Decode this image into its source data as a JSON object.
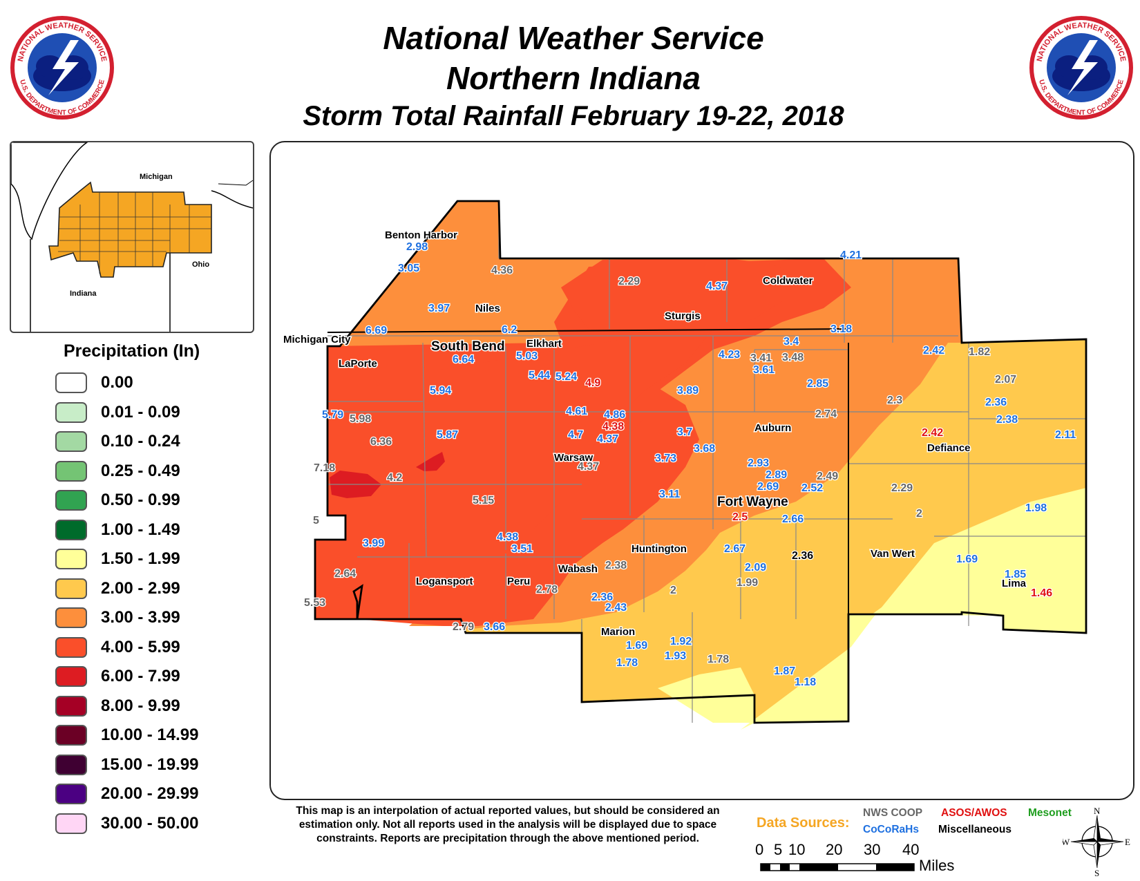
{
  "title": {
    "line1": "National Weather Service",
    "line2": "Northern Indiana",
    "line3": "Storm Total Rainfall February 19-22, 2018"
  },
  "logo": {
    "top_text": "NATIONAL WEATHER SERVICE",
    "bottom_text": "U.S. DEPARTMENT OF COMMERCE",
    "colors": {
      "ring": "#d32030",
      "field": "#1f4fb4",
      "cloud": "#0b1f80"
    }
  },
  "inset_map": {
    "labels": {
      "michigan": "Michigan",
      "ohio": "Ohio",
      "indiana": "Indiana"
    },
    "region_color": "#f5a623"
  },
  "legend": {
    "title": "Precipitation (In)",
    "items": [
      {
        "label": "0.00",
        "color": "#ffffff"
      },
      {
        "label": "0.01 - 0.09",
        "color": "#c8edc8"
      },
      {
        "label": "0.10 - 0.24",
        "color": "#a3d9a3"
      },
      {
        "label": "0.25 - 0.49",
        "color": "#74c474"
      },
      {
        "label": "0.50 - 0.99",
        "color": "#31a351"
      },
      {
        "label": "1.00 - 1.49",
        "color": "#006b2b"
      },
      {
        "label": "1.50 - 1.99",
        "color": "#ffff99"
      },
      {
        "label": "2.00 - 2.99",
        "color": "#ffc94d"
      },
      {
        "label": "3.00 - 3.99",
        "color": "#fd8f3c"
      },
      {
        "label": "4.00 - 5.99",
        "color": "#fa4f2a"
      },
      {
        "label": "6.00 - 7.99",
        "color": "#dd1c22"
      },
      {
        "label": "8.00 - 9.99",
        "color": "#a50025"
      },
      {
        "label": "10.00 - 14.99",
        "color": "#6b0025"
      },
      {
        "label": "15.00 - 19.99",
        "color": "#3f0032"
      },
      {
        "label": "20.00 - 29.99",
        "color": "#4b0082"
      },
      {
        "label": "30.00 - 50.00",
        "color": "#ffd6f5"
      }
    ]
  },
  "cities": {
    "benton_harbor": "Benton Harbor",
    "niles": "Niles",
    "coldwater": "Coldwater",
    "sturgis": "Sturgis",
    "michigan_city": "Michigan City",
    "laporte": "LaPorte",
    "south_bend": "South Bend",
    "elkhart": "Elkhart",
    "auburn": "Auburn",
    "defiance": "Defiance",
    "warsaw": "Warsaw",
    "fort_wayne": "Fort Wayne",
    "huntington": "Huntington",
    "wabash": "Wabash",
    "peru": "Peru",
    "logansport": "Logansport",
    "van_wert": "Van Wert",
    "lima": "Lima",
    "marion": "Marion"
  },
  "observations": {
    "o01": "2.98",
    "o02": "3.05",
    "o03": "4.36",
    "o04": "3.97",
    "o05": "2.29",
    "o06": "4.37",
    "o07": "4.21",
    "o08": "6.69",
    "o09": "6.2",
    "o10": "3.18",
    "o11": "6.64",
    "o12": "5.03",
    "o13": "4.23",
    "o14": "3.41",
    "o15": "3.4",
    "o16": "3.48",
    "o17": "3.61",
    "o18": "2.42",
    "o19": "1.82",
    "o20": "5.94",
    "o21": "5.44",
    "o22": "5.24",
    "o23": "4.9",
    "o24": "3.89",
    "o25": "2.85",
    "o26": "2.07",
    "o27": "5.79",
    "o28": "5.98",
    "o29": "2.3",
    "o30": "2.36",
    "o31": "4.61",
    "o32": "4.86",
    "o33": "2.74",
    "o34": "2.38",
    "o35": "6.36",
    "o36": "5.87",
    "o37": "4.38",
    "o38": "4.7",
    "o39": "4.37",
    "o40": "3.7",
    "o41": "2.42",
    "o42": "2.11",
    "o43": "3.68",
    "o44": "7.18",
    "o45": "3.73",
    "o46": "4.37",
    "o47": "4.2",
    "o48": "2.93",
    "o49": "2.89",
    "o50": "2.49",
    "o51": "2.69",
    "o52": "2.52",
    "o53": "2.29",
    "o54": "5.15",
    "o55": "3.11",
    "o56": "1.98",
    "o57": "2.5",
    "o58": "2.66",
    "o59": "2",
    "o60": "5",
    "o61": "4.38",
    "o62": "3.99",
    "o63": "3.51",
    "o64": "2.67",
    "o65": "2.36",
    "o66": "1.69",
    "o67": "2.38",
    "o68": "2.09",
    "o69": "2.64",
    "o70": "1.99",
    "o71": "1.85",
    "o72": "2.78",
    "o73": "2",
    "o74": "1.46",
    "o75": "2.36",
    "o76": "5.53",
    "o77": "2.43",
    "o78": "2.79",
    "o79": "3.66",
    "o80": "1.92",
    "o81": "1.69",
    "o82": "1.93",
    "o83": "1.78",
    "o84": "1.78",
    "o85": "1.87",
    "o86": "1.18"
  },
  "disclaimer": "This map is an interpolation of actual reported values, but should be considered an estimation only. Not all reports used in the analysis will be displayed due to space constraints. Reports are precipitation through the above mentioned period.",
  "data_sources": {
    "label": "Data Sources:",
    "nws_coop": "NWS COOP",
    "asos": "ASOS/AWOS",
    "mesonet": "Mesonet",
    "cocorahs": "CoCoRaHs",
    "misc": "Miscellaneous",
    "colors": {
      "nws_coop": "#666666",
      "asos": "#e01010",
      "mesonet": "#1f9e1f",
      "cocorahs": "#1e70e0",
      "misc": "#000000",
      "label": "#f5a623"
    }
  },
  "scale_bar": {
    "ticks": [
      "0",
      "5",
      "10",
      "20",
      "30",
      "40"
    ],
    "unit": "Miles"
  },
  "compass": {
    "n": "N",
    "s": "S",
    "e": "E",
    "w": "W"
  }
}
